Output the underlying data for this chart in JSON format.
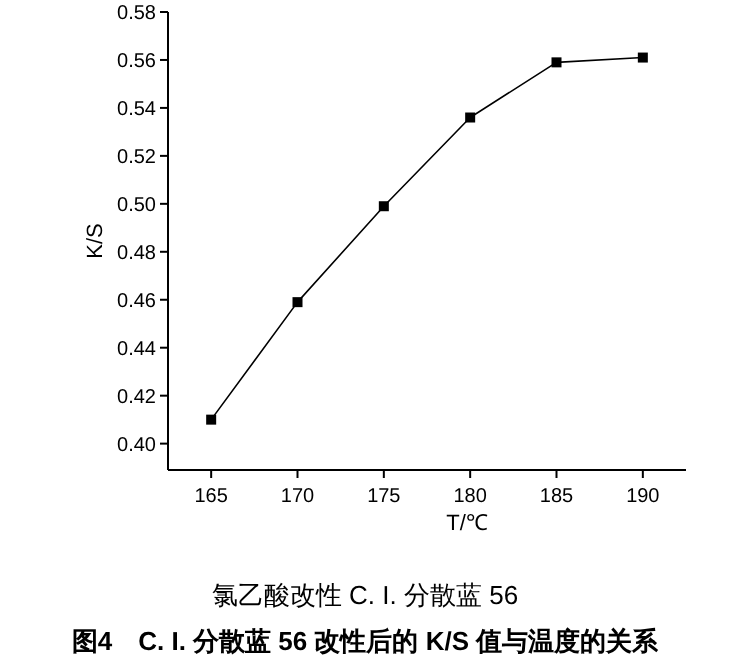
{
  "chart_data": {
    "type": "line",
    "xlabel": "T/℃",
    "ylabel": "K/S",
    "subtitle": "氯乙酸改性 C. I. 分散蓝 56",
    "title": "图4　C. I. 分散蓝 56 改性后的 K/S 值与温度的关系",
    "x": [
      165,
      170,
      175,
      180,
      185,
      190
    ],
    "series": [
      {
        "color": "#000000",
        "values": [
          0.41,
          0.459,
          0.499,
          0.536,
          0.559,
          0.561
        ]
      }
    ],
    "marker": "square",
    "line_style": "solid",
    "xlim": [
      162.5,
      192.5
    ],
    "xticks": [
      165,
      170,
      175,
      180,
      185,
      190
    ],
    "ylim": [
      0.389,
      0.58
    ],
    "yticks": [
      {
        "value": 0.4,
        "label": "0.40"
      },
      {
        "value": 0.42,
        "label": "0.42"
      },
      {
        "value": 0.44,
        "label": "0.44"
      },
      {
        "value": 0.46,
        "label": "0.46"
      },
      {
        "value": 0.48,
        "label": "0.48"
      },
      {
        "value": 0.5,
        "label": "0.50"
      },
      {
        "value": 0.52,
        "label": "0.52"
      },
      {
        "value": 0.54,
        "label": "0.54"
      },
      {
        "value": 0.56,
        "label": "0.56"
      },
      {
        "value": 0.58,
        "label": "0.58"
      }
    ]
  }
}
